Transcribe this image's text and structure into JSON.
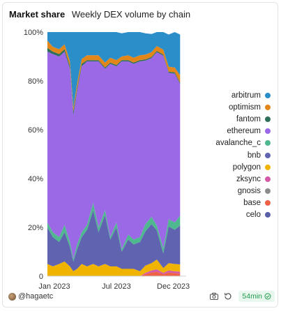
{
  "header": {
    "title": "Market share",
    "subtitle": "Weekly DEX volume by chain"
  },
  "footer": {
    "author": "@hagaetc",
    "refresh_age": "54min"
  },
  "chart_data": {
    "type": "area",
    "stacked": true,
    "normalized": true,
    "x": [
      "2023-01-01",
      "2023-01-15",
      "2023-02-01",
      "2023-02-15",
      "2023-03-01",
      "2023-03-10",
      "2023-03-20",
      "2023-04-01",
      "2023-04-15",
      "2023-05-01",
      "2023-05-15",
      "2023-06-01",
      "2023-06-15",
      "2023-07-01",
      "2023-07-15",
      "2023-08-01",
      "2023-08-15",
      "2023-09-01",
      "2023-09-15",
      "2023-10-01",
      "2023-10-15",
      "2023-11-01",
      "2023-11-15",
      "2023-12-01",
      "2023-12-15"
    ],
    "x_tick_labels": [
      "Jan 2023",
      "Jul 2023",
      "Dec 2023"
    ],
    "y_tick_labels": [
      "0",
      "20%",
      "40%",
      "60%",
      "80%",
      "100%"
    ],
    "ylim": [
      0,
      100
    ],
    "series": [
      {
        "name": "celo",
        "color": "#5a5fa8",
        "values": [
          0,
          0,
          0,
          0,
          0,
          0,
          0,
          0,
          0,
          0,
          0,
          0,
          0,
          0,
          0,
          0,
          0,
          0,
          0,
          0,
          0,
          0,
          0,
          0,
          0
        ]
      },
      {
        "name": "base",
        "color": "#ef6145",
        "values": [
          0,
          0,
          0,
          0,
          0,
          0,
          0,
          0,
          0,
          0,
          0,
          0,
          0,
          0,
          0,
          0,
          0,
          0,
          0.8,
          1.5,
          1.8,
          0.8,
          1.5,
          1.2,
          1.0
        ]
      },
      {
        "name": "gnosis",
        "color": "#8c8c8c",
        "values": [
          0,
          0,
          0,
          0,
          0,
          0,
          0,
          0,
          0,
          0,
          0,
          0,
          0,
          0,
          0,
          0,
          0,
          0,
          0,
          0,
          0,
          0,
          0,
          0,
          0
        ]
      },
      {
        "name": "zksync",
        "color": "#d45aa8",
        "values": [
          0,
          0,
          0,
          0,
          0,
          0,
          0,
          0,
          0,
          0,
          0,
          0,
          0,
          0,
          0,
          0,
          0,
          0,
          0.5,
          0.8,
          1.0,
          0.5,
          0.8,
          0.8,
          0.8
        ]
      },
      {
        "name": "polygon",
        "color": "#f0b400",
        "values": [
          5,
          4,
          5,
          6,
          4,
          2,
          3,
          5,
          4,
          5,
          4,
          5,
          4,
          4,
          3,
          3,
          3,
          2,
          3,
          3,
          4,
          2,
          3,
          3,
          3
        ]
      },
      {
        "name": "bnb",
        "color": "#5f63b0",
        "values": [
          15,
          12,
          9,
          12,
          8,
          4,
          8,
          11,
          15,
          22,
          14,
          20,
          11,
          16,
          7,
          12,
          10,
          12,
          14,
          16,
          12,
          6,
          15,
          14,
          16
        ]
      },
      {
        "name": "avalanche_c",
        "color": "#4fb88f",
        "values": [
          2,
          2,
          2,
          3,
          2,
          1,
          2,
          2,
          2,
          3,
          2,
          2,
          1,
          2,
          1,
          2,
          2,
          2,
          3,
          3,
          2,
          2,
          3,
          3,
          4
        ]
      },
      {
        "name": "ethereum",
        "color": "#9b69e6",
        "values": [
          70,
          73,
          74,
          71,
          71,
          59,
          63,
          68,
          67,
          58,
          68,
          58,
          71,
          64,
          77,
          71,
          72,
          72,
          67,
          65,
          71,
          79,
          60,
          61,
          54
        ]
      },
      {
        "name": "fantom",
        "color": "#2e6e5a",
        "values": [
          1.5,
          1,
          1,
          1,
          1,
          1.5,
          1,
          1,
          0.5,
          0.5,
          0.5,
          0.5,
          0.5,
          0.5,
          0.5,
          0.5,
          0.5,
          0.5,
          0.5,
          0.5,
          0.5,
          0.5,
          0.5,
          0.5,
          0.5
        ]
      },
      {
        "name": "optimism",
        "color": "#e3861a",
        "values": [
          3,
          2,
          2,
          2,
          2,
          1.5,
          2,
          2,
          2,
          2,
          2,
          2,
          2,
          2,
          1.5,
          2,
          2,
          2,
          2,
          2,
          2,
          2,
          2,
          2,
          3
        ]
      },
      {
        "name": "arbitrum",
        "color": "#2c8ec9",
        "values": [
          3.5,
          6,
          7,
          5,
          12,
          31,
          21,
          11,
          9.5,
          9.5,
          9.5,
          12.5,
          10.5,
          11.5,
          9.5,
          9.5,
          10.5,
          9.5,
          8.7,
          7.4,
          5.7,
          7.2,
          13.2,
          14.5,
          16.7
        ]
      }
    ],
    "legend_order": [
      "arbitrum",
      "optimism",
      "fantom",
      "ethereum",
      "avalanche_c",
      "bnb",
      "polygon",
      "zksync",
      "gnosis",
      "base",
      "celo"
    ],
    "legend_position": "right",
    "grid": false
  }
}
